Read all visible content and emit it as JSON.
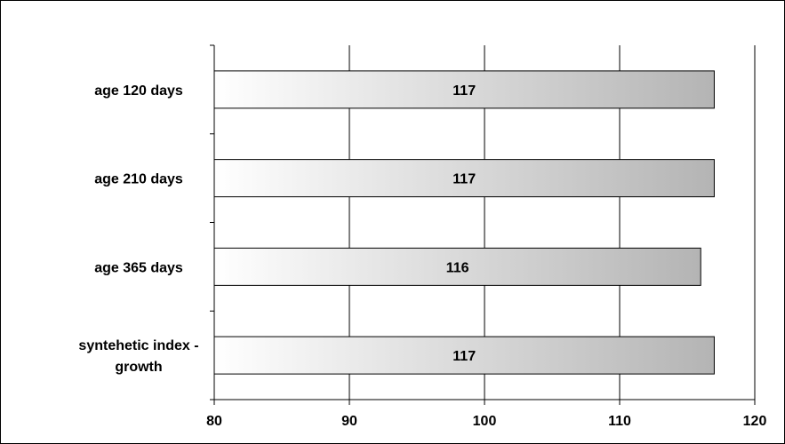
{
  "chart_data": {
    "type": "bar",
    "orientation": "horizontal",
    "categories": [
      "age 120 days",
      "age 210 days",
      "age 365 days",
      "syntehetic index - growth"
    ],
    "category_label_lines": [
      [
        "age 120 days"
      ],
      [
        "age 210 days"
      ],
      [
        "age 365 days"
      ],
      [
        "syntehetic index -",
        "growth"
      ]
    ],
    "values": [
      117,
      117,
      116,
      117
    ],
    "data_labels": [
      "117",
      "117",
      "116",
      "117"
    ],
    "xlim": [
      80,
      120
    ],
    "xticks": [
      80,
      90,
      100,
      110,
      120
    ],
    "xtick_labels": [
      "80",
      "90",
      "100",
      "110",
      "120"
    ],
    "grid": "vertical major gridlines",
    "legend": "none",
    "title": "",
    "xlabel": "",
    "ylabel": "",
    "bar_fill_gradient": [
      "#ffffff",
      "#b4b4b4"
    ],
    "bar_border_color": "#000000",
    "gridline_color": "#000000"
  }
}
